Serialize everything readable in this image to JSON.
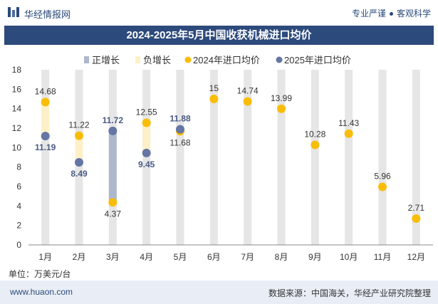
{
  "header": {
    "brand": "华经情报网",
    "slogan_left": "专业严谨",
    "slogan_right": "客观科学",
    "title": "2024-2025年5月中国收获机械进口均价"
  },
  "footer": {
    "unit": "单位：万美元/台",
    "url": "www.huaon.com",
    "source": "数据来源：中国海关，华经产业研究院整理"
  },
  "colors": {
    "background_bar": "#e6e6e6",
    "positive": "#aeb8cc",
    "negative": "#fdf0c8",
    "series_2024": "#f9bd07",
    "series_2025": "#6476a3",
    "title_bg": "#2d4a7c"
  },
  "chart_data": {
    "type": "bar",
    "categories": [
      "1月",
      "2月",
      "3月",
      "4月",
      "5月",
      "6月",
      "7月",
      "8月",
      "9月",
      "10月",
      "11月",
      "12月"
    ],
    "legend": [
      "正增长",
      "负增长",
      "2024年进口均价",
      "2025年进口均价"
    ],
    "legend_position": "top",
    "series": [
      {
        "name": "2024年进口均价",
        "values": [
          14.68,
          11.22,
          4.37,
          12.55,
          11.68,
          15,
          14.74,
          13.99,
          10.28,
          11.43,
          5.96,
          2.71
        ]
      },
      {
        "name": "2025年进口均价",
        "values": [
          11.19,
          8.49,
          11.72,
          9.45,
          11.88,
          null,
          null,
          null,
          null,
          null,
          null,
          null
        ]
      }
    ],
    "labels_2024": [
      "14.68",
      "11.22",
      "4.37",
      "12.55",
      "11.68",
      "15",
      "14.74",
      "13.99",
      "10.28",
      "11.43",
      "5.96",
      "2.71"
    ],
    "labels_2025": [
      "11.19",
      "8.49",
      "11.72",
      "9.45",
      "11.88"
    ],
    "yticks": [
      "0",
      "2",
      "4",
      "6",
      "8",
      "10",
      "12",
      "14",
      "16",
      "18"
    ],
    "ylim": [
      0,
      18
    ],
    "grid": false
  }
}
